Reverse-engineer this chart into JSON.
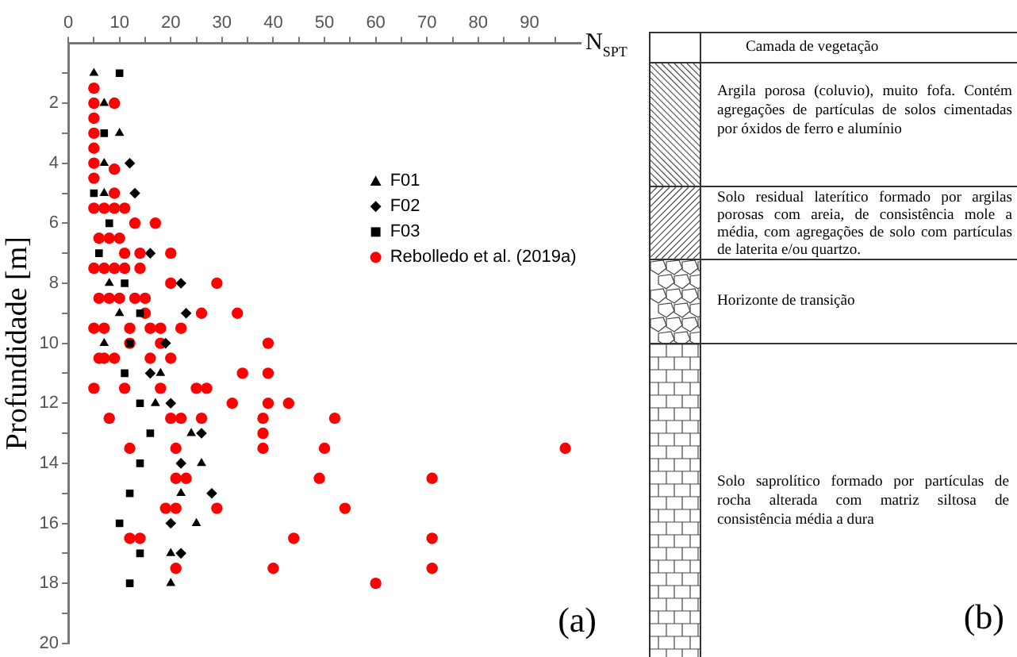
{
  "chart_data": {
    "type": "scatter",
    "xlabel": "N$_{SPT}$",
    "ylabel": "Profundidade [m]",
    "xlim": [
      0,
      100
    ],
    "xticks": [
      0,
      {
        "value": 5,
        "label": null
      },
      10,
      {
        "value": 15,
        "label": null
      },
      20,
      {
        "value": 25,
        "label": null
      },
      30,
      {
        "value": 35,
        "label": null
      },
      40,
      {
        "value": 45,
        "label": null
      },
      50,
      {
        "value": 55,
        "label": null
      },
      60,
      {
        "value": 65,
        "label": null
      },
      70,
      {
        "value": 75,
        "label": null
      },
      80,
      {
        "value": 85,
        "label": null
      },
      90,
      {
        "value": 95,
        "label": null
      }
    ],
    "ylim": [
      20,
      0
    ],
    "yticks": [
      {
        "value": 1,
        "label": null
      },
      2,
      {
        "value": 3,
        "label": null
      },
      4,
      {
        "value": 5,
        "label": null
      },
      6,
      {
        "value": 7,
        "label": null
      },
      8,
      {
        "value": 9,
        "label": null
      },
      10,
      {
        "value": 11,
        "label": null
      },
      12,
      {
        "value": 13,
        "label": null
      },
      14,
      {
        "value": 15,
        "label": null
      },
      16,
      {
        "value": 17,
        "label": null
      },
      18,
      {
        "value": 19,
        "label": null
      },
      20
    ],
    "legend": "right",
    "series": [
      {
        "name": "F01",
        "color": "#000000",
        "marker": "triangle",
        "x": [
          5,
          7,
          10,
          7,
          7,
          8,
          10,
          7,
          18,
          17,
          24,
          26,
          22,
          25,
          20,
          20
        ],
        "values": [
          1,
          2,
          3,
          4,
          5,
          8,
          9,
          10,
          11,
          12,
          13,
          14,
          15,
          16,
          17,
          18
        ]
      },
      {
        "name": "F02",
        "color": "#000000",
        "marker": "diamond",
        "x": [
          12,
          13,
          16,
          22,
          23,
          19,
          16,
          20,
          26,
          22,
          28,
          20,
          22
        ],
        "values": [
          4,
          5,
          7,
          8,
          9,
          10,
          11,
          12,
          13,
          14,
          15,
          16,
          17
        ]
      },
      {
        "name": "F03",
        "color": "#000000",
        "marker": "square",
        "x": [
          10,
          7,
          5,
          8,
          6,
          11,
          14,
          12,
          11,
          14,
          16,
          14,
          12,
          10,
          14,
          12
        ],
        "values": [
          1,
          3,
          5,
          6,
          7,
          8,
          9,
          10,
          11,
          12,
          13,
          14,
          15,
          16,
          17,
          18
        ]
      },
      {
        "name": "Rebolledo et al. (2019a)",
        "color": "#ff0000",
        "marker": "circle",
        "x": [
          5,
          5,
          9,
          5,
          5,
          5,
          5,
          9,
          5,
          9,
          5,
          7,
          9,
          11,
          13,
          17,
          6,
          8,
          10,
          11,
          14,
          20,
          5,
          7,
          9,
          11,
          14,
          20,
          29,
          6,
          8,
          10,
          13,
          15,
          15,
          26,
          33,
          5,
          7,
          12,
          16,
          18,
          22,
          12,
          18,
          39,
          6,
          7,
          9,
          16,
          20,
          34,
          39,
          5,
          11,
          18,
          25,
          27,
          32,
          39,
          43,
          8,
          20,
          22,
          26,
          38,
          52,
          38,
          12,
          21,
          38,
          50,
          97,
          21,
          23,
          49,
          71,
          19,
          21,
          29,
          54,
          12,
          14,
          44,
          71,
          21,
          40,
          71,
          60
        ],
        "values": [
          1.5,
          2,
          2,
          2.5,
          3,
          3.5,
          4,
          4.2,
          4.5,
          5,
          5.5,
          5.5,
          5.5,
          5.5,
          6,
          6,
          6.5,
          6.5,
          6.5,
          7,
          7,
          7,
          7.5,
          7.5,
          7.5,
          7.5,
          7.5,
          8,
          8,
          8.5,
          8.5,
          8.5,
          8.5,
          8.5,
          9,
          9,
          9,
          9.5,
          9.5,
          9.5,
          9.5,
          9.5,
          9.5,
          10,
          10,
          10,
          10.5,
          10.5,
          10.5,
          10.5,
          10.5,
          11,
          11,
          11.5,
          11.5,
          11.5,
          11.5,
          11.5,
          12,
          12,
          12,
          12.5,
          12.5,
          12.5,
          12.5,
          12.5,
          12.5,
          13,
          13.5,
          13.5,
          13.5,
          13.5,
          13.5,
          14.5,
          14.5,
          14.5,
          14.5,
          15.5,
          15.5,
          15.5,
          15.5,
          16.5,
          16.5,
          16.5,
          16.5,
          17.5,
          17.5,
          17.5,
          18
        ]
      }
    ],
    "annotations": [
      "(a)",
      "Camada de vegetação",
      "Argila porosa (coluvio), muito fofa. Contém agregações de partículas de solos cimentadas por óxidos de ferro e alumínio",
      "Solo residual laterítico formado por argilas porosas com areia, de consistência mole a média, com agregações de solo com partículas de laterita e/ou quartzo.",
      "Horizonte de transição",
      "Solo saprolítico formado por partículas de rocha alterada com matriz siltosa de consistência média a dura",
      "(b)"
    ]
  }
}
